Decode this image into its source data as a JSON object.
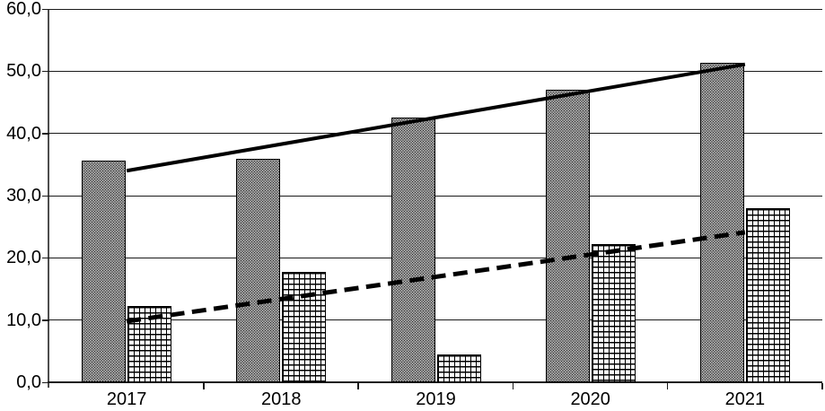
{
  "page": {
    "background_color": "#ffffff",
    "foreground_color": "#000000",
    "title": ""
  },
  "chart_data": {
    "type": "bar",
    "title": "",
    "subtitle": "",
    "xlabel": "",
    "ylabel": "",
    "legend_position": "none",
    "grid": true,
    "categories": [
      "2017",
      "2018",
      "2019",
      "2020",
      "2021"
    ],
    "series": [
      {
        "name": "dotted-stipple-bars",
        "pattern": "fine-dot-stipple",
        "values": [
          35.6,
          35.9,
          42.5,
          47.0,
          51.3
        ]
      },
      {
        "name": "crosshatch-grid-bars",
        "pattern": "square-grid-crosshatch",
        "values": [
          12.2,
          17.8,
          4.5,
          22.2,
          28.0
        ]
      }
    ],
    "trendlines": [
      {
        "name": "solid-linear-trend",
        "for_series": "dotted-stipple-bars",
        "style": "solid",
        "start_value": 34.0,
        "end_value": 51.1
      },
      {
        "name": "dashed-linear-trend",
        "for_series": "crosshatch-grid-bars",
        "style": "dashed",
        "start_value": 9.8,
        "end_value": 24.1
      }
    ],
    "y_axis": {
      "min": 0,
      "max": 60,
      "step": 10,
      "decimal_separator": ",",
      "tick_labels": [
        "0,0",
        "10,0",
        "20,0",
        "30,0",
        "40,0",
        "50,0",
        "60,0"
      ]
    },
    "x_axis": {
      "tick_labels": [
        "2017",
        "2018",
        "2019",
        "2020",
        "2021"
      ]
    },
    "colors": {
      "line": "#000000",
      "grid_line": "#1a1a1a",
      "bar_fill": "#ffffff"
    }
  }
}
